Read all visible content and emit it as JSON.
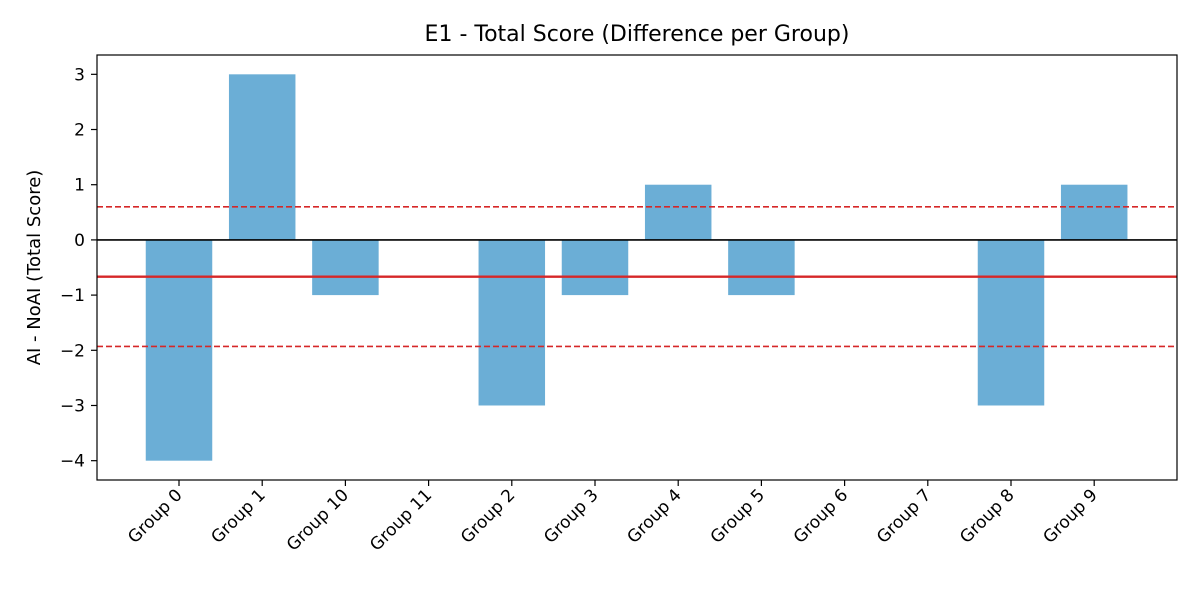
{
  "chart_data": {
    "type": "bar",
    "title": "E1 - Total Score (Difference per Group)",
    "xlabel": "",
    "ylabel": "AI - NoAI (Total Score)",
    "categories": [
      "Group 0",
      "Group 1",
      "Group 10",
      "Group 11",
      "Group 2",
      "Group 3",
      "Group 4",
      "Group 5",
      "Group 6",
      "Group 7",
      "Group 8",
      "Group 9"
    ],
    "values": [
      -4,
      3,
      -1,
      0,
      -3,
      -1,
      1,
      -1,
      0,
      0,
      -3,
      1
    ],
    "ylim": [
      -4.35,
      3.35
    ],
    "yticks": [
      -4,
      -3,
      -2,
      -1,
      0,
      1,
      2,
      3
    ],
    "ytick_labels": [
      "−4",
      "−3",
      "−2",
      "−1",
      "0",
      "1",
      "2",
      "3"
    ],
    "reference_lines": {
      "zero": {
        "value": 0,
        "color": "#000000",
        "style": "solid"
      },
      "mean": {
        "value": -0.667,
        "color": "#d62728",
        "style": "solid"
      },
      "upper_bound": {
        "value": 0.6,
        "color": "#d62728",
        "style": "dashed"
      },
      "lower_bound": {
        "value": -1.93,
        "color": "#d62728",
        "style": "dashed"
      }
    },
    "bar_color": "#6baed6",
    "grid": false,
    "legend": "none"
  }
}
